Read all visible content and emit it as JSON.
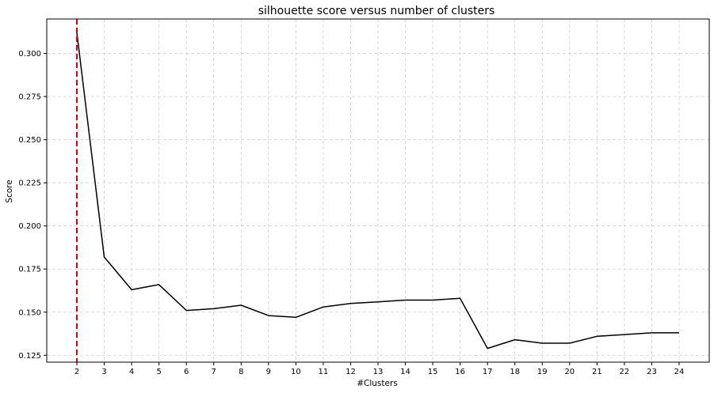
{
  "chart_data": {
    "type": "line",
    "title": "silhouette score versus number of clusters",
    "xlabel": "#Clusters",
    "ylabel": "Score",
    "x": [
      2,
      3,
      4,
      5,
      6,
      7,
      8,
      9,
      10,
      11,
      12,
      13,
      14,
      15,
      16,
      17,
      18,
      19,
      20,
      21,
      22,
      23,
      24
    ],
    "series": [
      {
        "values": [
          0.312,
          0.182,
          0.163,
          0.166,
          0.151,
          0.152,
          0.154,
          0.148,
          0.147,
          0.153,
          0.155,
          0.156,
          0.157,
          0.157,
          0.158,
          0.129,
          0.134,
          0.132,
          0.132,
          0.136,
          0.137,
          0.138,
          0.138
        ],
        "color": "#000000"
      }
    ],
    "xlim": [
      0.9,
      25.1
    ],
    "ylim": [
      0.121,
      0.32
    ],
    "yticks": [
      0.125,
      0.15,
      0.175,
      0.2,
      0.225,
      0.25,
      0.275,
      0.3
    ],
    "ytick_labels": [
      "0.125",
      "0.150",
      "0.175",
      "0.200",
      "0.225",
      "0.250",
      "0.275",
      "0.300"
    ],
    "xticks": [
      2,
      3,
      4,
      5,
      6,
      7,
      8,
      9,
      10,
      11,
      12,
      13,
      14,
      15,
      16,
      17,
      18,
      19,
      20,
      21,
      22,
      23,
      24
    ],
    "xtick_labels": [
      "2",
      "3",
      "4",
      "5",
      "6",
      "7",
      "8",
      "9",
      "10",
      "11",
      "12",
      "13",
      "14",
      "15",
      "16",
      "17",
      "18",
      "19",
      "20",
      "21",
      "22",
      "23",
      "24"
    ],
    "vline": {
      "x": 2,
      "color": "#e00000",
      "style": "dashed"
    },
    "grid": true,
    "grid_style": "dashed"
  }
}
